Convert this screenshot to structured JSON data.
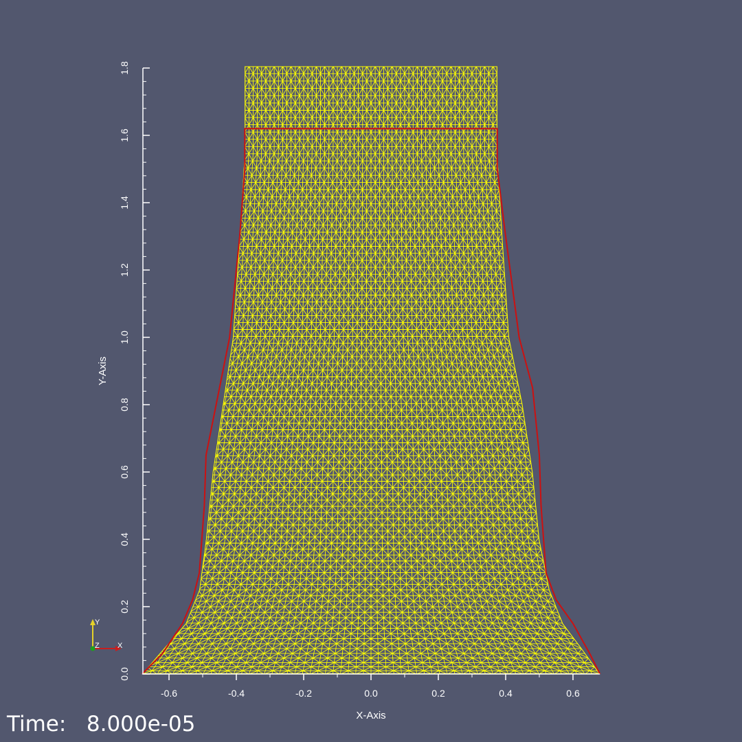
{
  "viewer": {
    "background_color": "#52576e",
    "x_axis": {
      "title": "X-Axis",
      "range": [
        -0.68,
        0.68
      ],
      "ticks": [
        -0.6,
        -0.4,
        -0.2,
        0.0,
        0.2,
        0.4,
        0.6
      ],
      "tick_labels": [
        "-0.6",
        "-0.4",
        "-0.2",
        "0.0",
        "0.2",
        "0.4",
        "0.6"
      ],
      "minor_step": 0.1
    },
    "y_axis": {
      "title": "Y-Axis",
      "range": [
        0.0,
        1.8
      ],
      "ticks": [
        0.0,
        0.2,
        0.4,
        0.6,
        0.8,
        1.0,
        1.2,
        1.4,
        1.6,
        1.8
      ],
      "tick_labels": [
        "0.0",
        "0.2",
        "0.4",
        "0.6",
        "0.8",
        "1.0",
        "1.2",
        "1.4",
        "1.6",
        "1.8"
      ],
      "minor_step": 0.04
    },
    "orientation_axes": {
      "x_label": "X",
      "y_label": "Y",
      "z_label": "Z"
    },
    "time": {
      "label": "Time:",
      "value": "8.000e-05"
    }
  },
  "mesh": {
    "color": "#ffff00",
    "outline": [
      [
        -0.68,
        0.0
      ],
      [
        -0.62,
        0.07
      ],
      [
        -0.55,
        0.15
      ],
      [
        -0.51,
        0.25
      ],
      [
        -0.49,
        0.4
      ],
      [
        -0.47,
        0.6
      ],
      [
        -0.44,
        0.8
      ],
      [
        -0.41,
        1.0
      ],
      [
        -0.39,
        1.3
      ],
      [
        -0.375,
        1.55
      ],
      [
        -0.375,
        1.805
      ],
      [
        0.375,
        1.805
      ],
      [
        0.375,
        1.55
      ],
      [
        0.39,
        1.3
      ],
      [
        0.41,
        1.0
      ],
      [
        0.45,
        0.8
      ],
      [
        0.48,
        0.6
      ],
      [
        0.5,
        0.4
      ],
      [
        0.53,
        0.25
      ],
      [
        0.57,
        0.15
      ],
      [
        0.63,
        0.07
      ],
      [
        0.68,
        0.0
      ]
    ],
    "column_count": 60,
    "row_count": 95
  },
  "outline_curve": {
    "color": "#cc1111",
    "points": [
      [
        -0.68,
        0.0
      ],
      [
        -0.62,
        0.06
      ],
      [
        -0.56,
        0.15
      ],
      [
        -0.53,
        0.22
      ],
      [
        -0.51,
        0.3
      ],
      [
        -0.495,
        0.5
      ],
      [
        -0.49,
        0.65
      ],
      [
        -0.45,
        0.85
      ],
      [
        -0.42,
        1.0
      ],
      [
        -0.39,
        1.3
      ],
      [
        -0.375,
        1.5
      ],
      [
        -0.375,
        1.62
      ],
      [
        0.375,
        1.62
      ],
      [
        0.375,
        1.5
      ],
      [
        0.4,
        1.3
      ],
      [
        0.44,
        1.0
      ],
      [
        0.48,
        0.85
      ],
      [
        0.5,
        0.65
      ],
      [
        0.505,
        0.5
      ],
      [
        0.52,
        0.3
      ],
      [
        0.55,
        0.22
      ],
      [
        0.6,
        0.15
      ],
      [
        0.65,
        0.06
      ],
      [
        0.68,
        0.0
      ]
    ]
  }
}
